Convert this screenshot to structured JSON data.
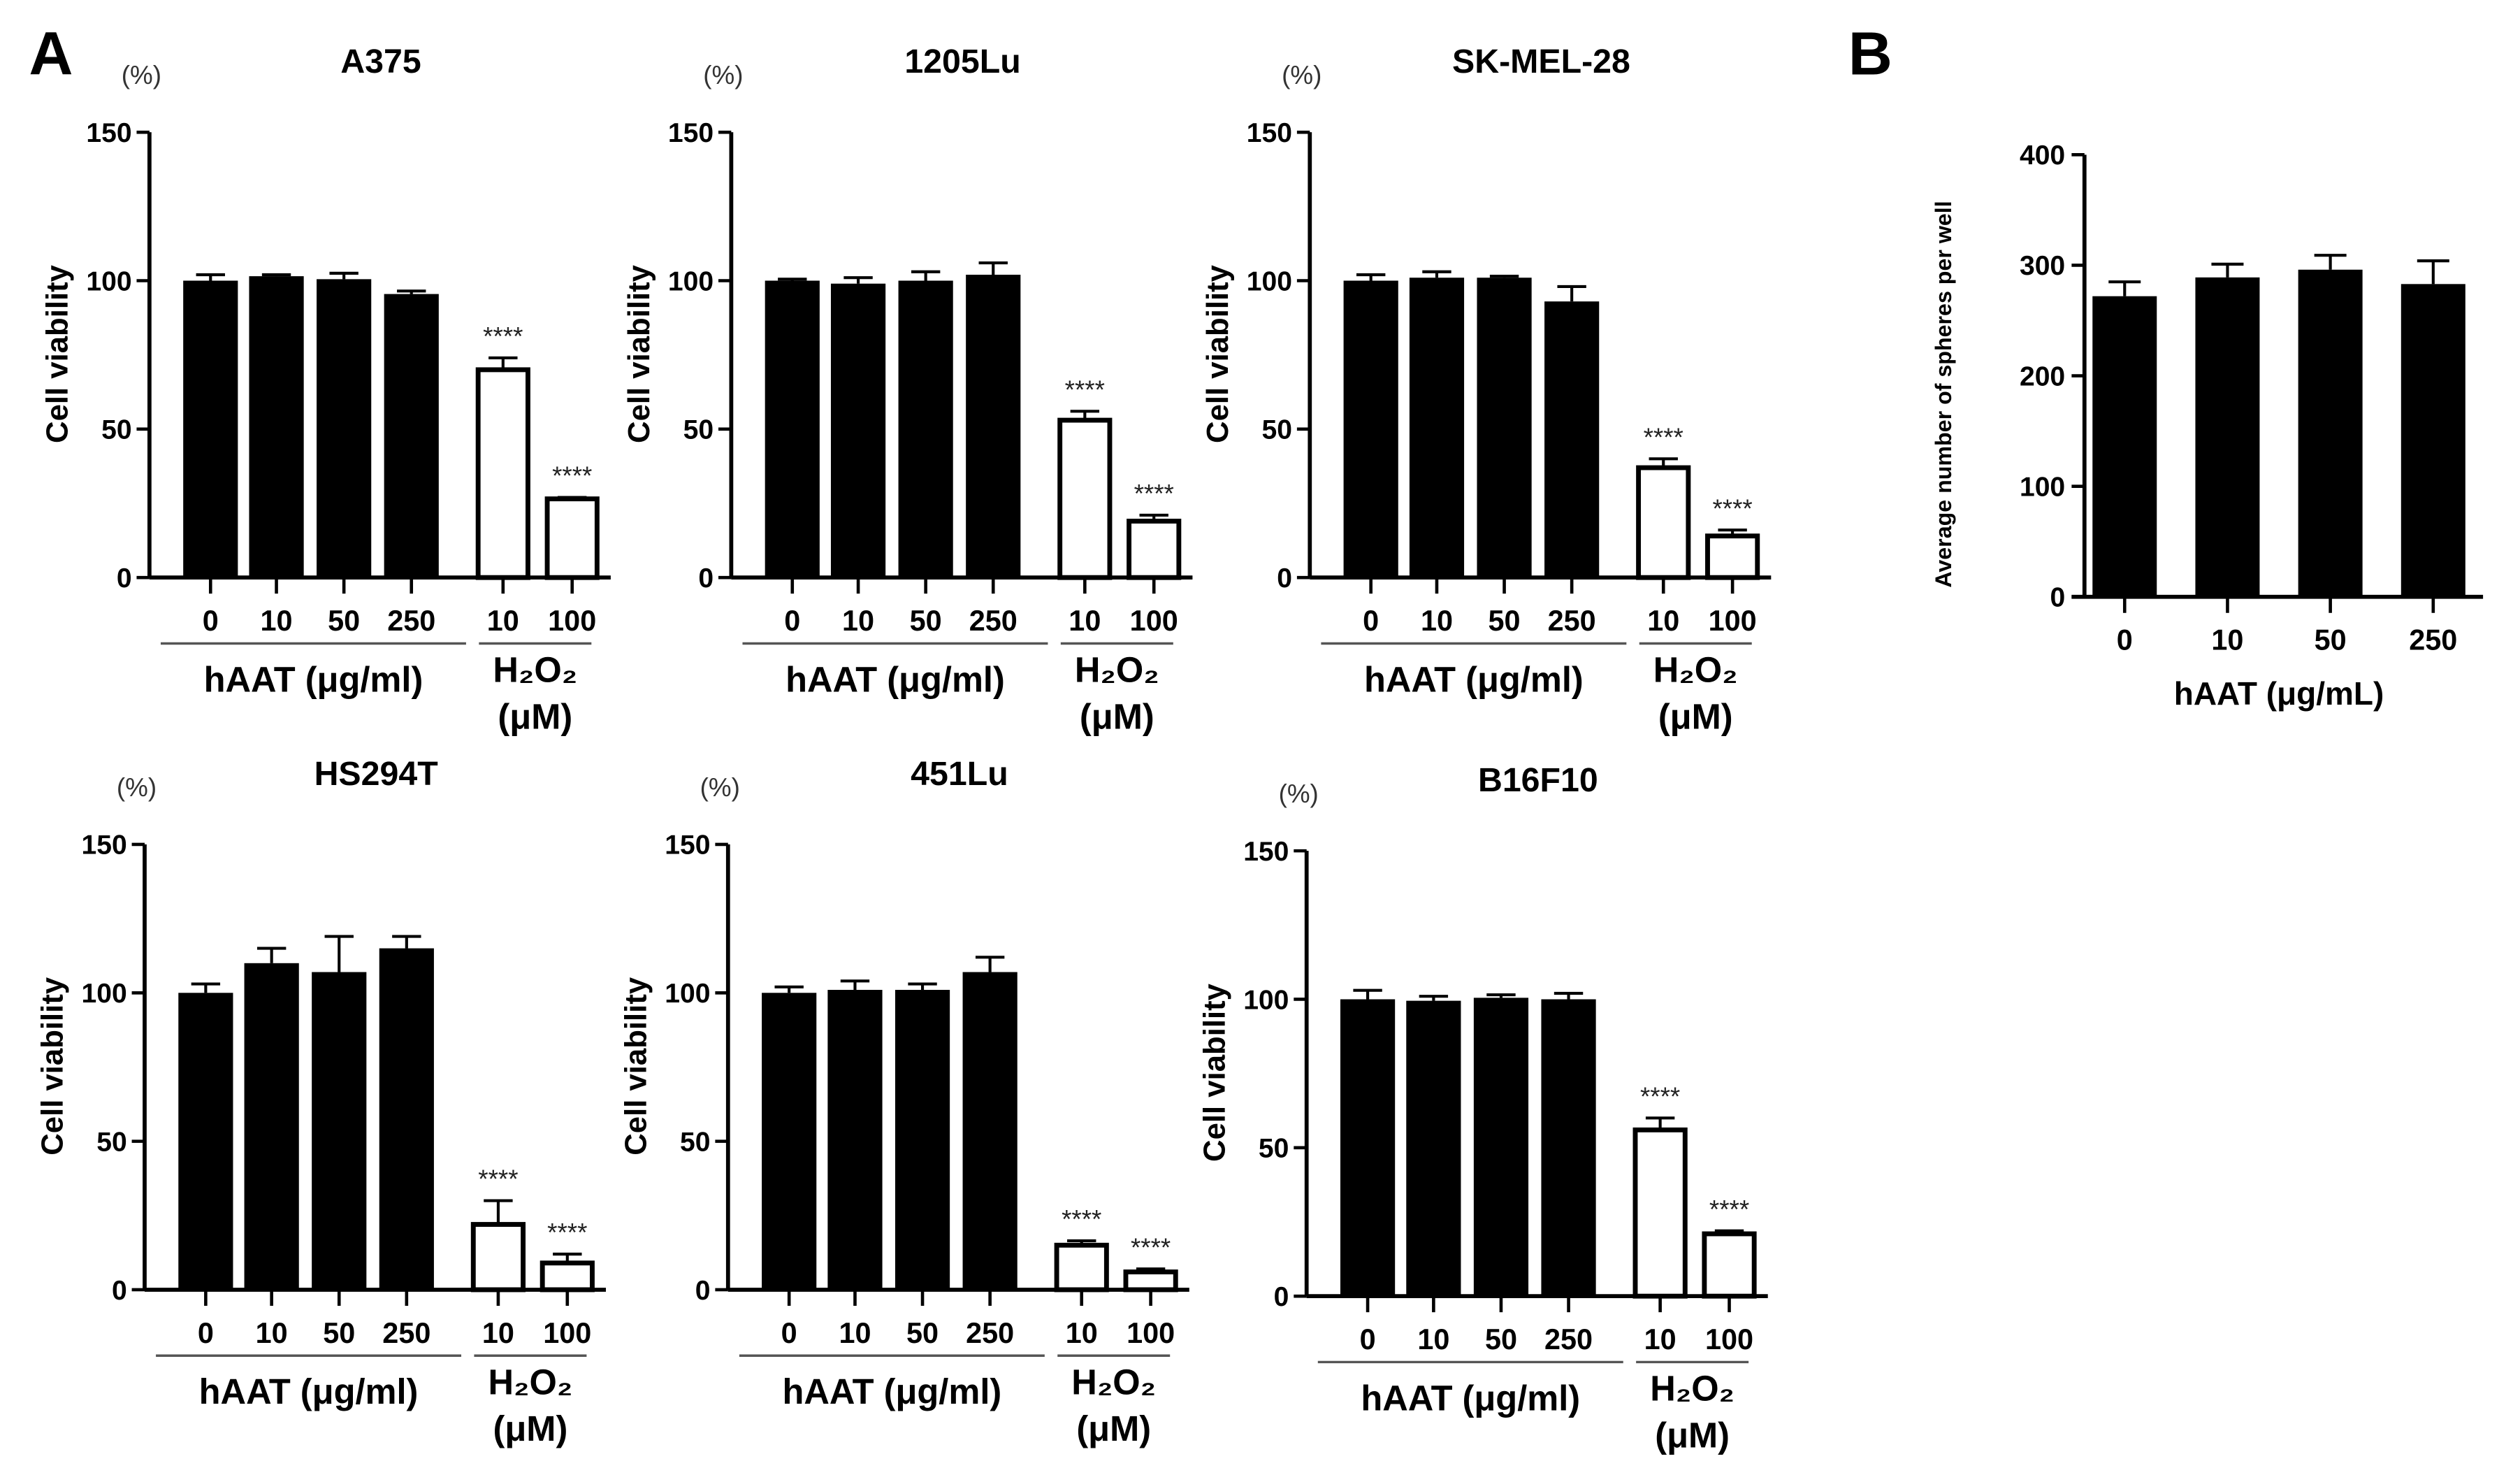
{
  "panel_labels": {
    "a": "A",
    "b": "B"
  },
  "chart_data": [
    {
      "type": "bar",
      "title": "A375",
      "unit_label": "(%)",
      "ylabel": "Cell viability",
      "ylim": [
        0,
        150
      ],
      "yticks": [
        0,
        50,
        100,
        150
      ],
      "categories": [
        "0",
        "10",
        "50",
        "250",
        "10",
        "100"
      ],
      "groups": [
        {
          "label": "hAAT (μg/ml)",
          "count": 4
        },
        {
          "label": "H₂O₂",
          "sublabel": "(μM)",
          "count": 2
        }
      ],
      "values": [
        100,
        101.5,
        100.5,
        95.5,
        70,
        26.5
      ],
      "errors": [
        2,
        0.5,
        2,
        1,
        4,
        0.5
      ],
      "fill": [
        "#000000",
        "#000000",
        "#000000",
        "#000000",
        "#ffffff",
        "#ffffff"
      ],
      "significance": [
        "",
        "",
        "",
        "",
        "****",
        "****"
      ]
    },
    {
      "type": "bar",
      "title": "1205Lu",
      "unit_label": "(%)",
      "ylabel": "Cell viability",
      "ylim": [
        0,
        150
      ],
      "yticks": [
        0,
        50,
        100,
        150
      ],
      "categories": [
        "0",
        "10",
        "50",
        "250",
        "10",
        "100"
      ],
      "groups": [
        {
          "label": "hAAT (μg/ml)",
          "count": 4
        },
        {
          "label": "H₂O₂",
          "sublabel": "(μM)",
          "count": 2
        }
      ],
      "values": [
        100,
        99,
        100,
        102,
        53,
        19
      ],
      "errors": [
        0.5,
        2,
        3,
        4,
        3,
        2
      ],
      "fill": [
        "#000000",
        "#000000",
        "#000000",
        "#000000",
        "#ffffff",
        "#ffffff"
      ],
      "significance": [
        "",
        "",
        "",
        "",
        "****",
        "****"
      ]
    },
    {
      "type": "bar",
      "title": "SK-MEL-28",
      "unit_label": "(%)",
      "ylabel": "Cell viability",
      "ylim": [
        0,
        150
      ],
      "yticks": [
        0,
        50,
        100,
        150
      ],
      "categories": [
        "0",
        "10",
        "50",
        "250",
        "10",
        "100"
      ],
      "groups": [
        {
          "label": "hAAT (μg/ml)",
          "count": 4
        },
        {
          "label": "H₂O₂",
          "sublabel": "(μM)",
          "count": 2
        }
      ],
      "values": [
        100,
        101,
        101,
        93,
        37,
        14
      ],
      "errors": [
        2,
        2,
        0.5,
        5,
        3,
        2
      ],
      "fill": [
        "#000000",
        "#000000",
        "#000000",
        "#000000",
        "#ffffff",
        "#ffffff"
      ],
      "significance": [
        "",
        "",
        "",
        "",
        "****",
        "****"
      ]
    },
    {
      "type": "bar",
      "title": "HS294T",
      "unit_label": "(%)",
      "ylabel": "Cell viability",
      "ylim": [
        0,
        150
      ],
      "yticks": [
        0,
        50,
        100,
        150
      ],
      "categories": [
        "0",
        "10",
        "50",
        "250",
        "10",
        "100"
      ],
      "groups": [
        {
          "label": "hAAT (μg/ml)",
          "count": 4
        },
        {
          "label": "H₂O₂",
          "sublabel": "(μM)",
          "count": 2
        }
      ],
      "values": [
        100,
        110,
        107,
        115,
        22,
        9
      ],
      "errors": [
        3,
        5,
        12,
        4,
        8,
        3
      ],
      "fill": [
        "#000000",
        "#000000",
        "#000000",
        "#000000",
        "#ffffff",
        "#ffffff"
      ],
      "significance": [
        "",
        "",
        "",
        "",
        "****",
        "****"
      ]
    },
    {
      "type": "bar",
      "title": "451Lu",
      "unit_label": "(%)",
      "ylabel": "Cell viability",
      "ylim": [
        0,
        150
      ],
      "yticks": [
        0,
        50,
        100,
        150
      ],
      "categories": [
        "0",
        "10",
        "50",
        "250",
        "10",
        "100"
      ],
      "groups": [
        {
          "label": "hAAT (μg/ml)",
          "count": 4
        },
        {
          "label": "H₂O₂",
          "sublabel": "(μM)",
          "count": 2
        }
      ],
      "values": [
        100,
        101,
        101,
        107,
        15,
        6
      ],
      "errors": [
        2,
        3,
        2,
        5,
        1.5,
        1
      ],
      "fill": [
        "#000000",
        "#000000",
        "#000000",
        "#000000",
        "#ffffff",
        "#ffffff"
      ],
      "significance": [
        "",
        "",
        "",
        "",
        "****",
        "****"
      ]
    },
    {
      "type": "bar",
      "title": "B16F10",
      "unit_label": "(%)",
      "ylabel": "Cell viability",
      "ylim": [
        0,
        150
      ],
      "yticks": [
        0,
        50,
        100,
        150
      ],
      "categories": [
        "0",
        "10",
        "50",
        "250",
        "10",
        "100"
      ],
      "groups": [
        {
          "label": "hAAT (μg/ml)",
          "count": 4
        },
        {
          "label": "H₂O₂",
          "sublabel": "(μM)",
          "count": 2
        }
      ],
      "values": [
        100,
        99.5,
        100.5,
        100,
        56,
        21
      ],
      "errors": [
        3,
        1.5,
        1,
        2,
        4,
        1
      ],
      "fill": [
        "#000000",
        "#000000",
        "#000000",
        "#000000",
        "#ffffff",
        "#ffffff"
      ],
      "significance": [
        "",
        "",
        "",
        "",
        "****",
        "****"
      ]
    },
    {
      "type": "bar",
      "title": "",
      "ylabel": "Average number of spheres per well",
      "xlabel": "hAAT (μg/mL)",
      "ylim": [
        0,
        400
      ],
      "yticks": [
        0,
        100,
        200,
        300,
        400
      ],
      "categories": [
        "0",
        "10",
        "50",
        "250"
      ],
      "values": [
        272,
        289,
        296,
        283
      ],
      "errors": [
        13,
        12,
        13,
        21
      ],
      "fill": [
        "#000000",
        "#000000",
        "#000000",
        "#000000"
      ]
    }
  ]
}
